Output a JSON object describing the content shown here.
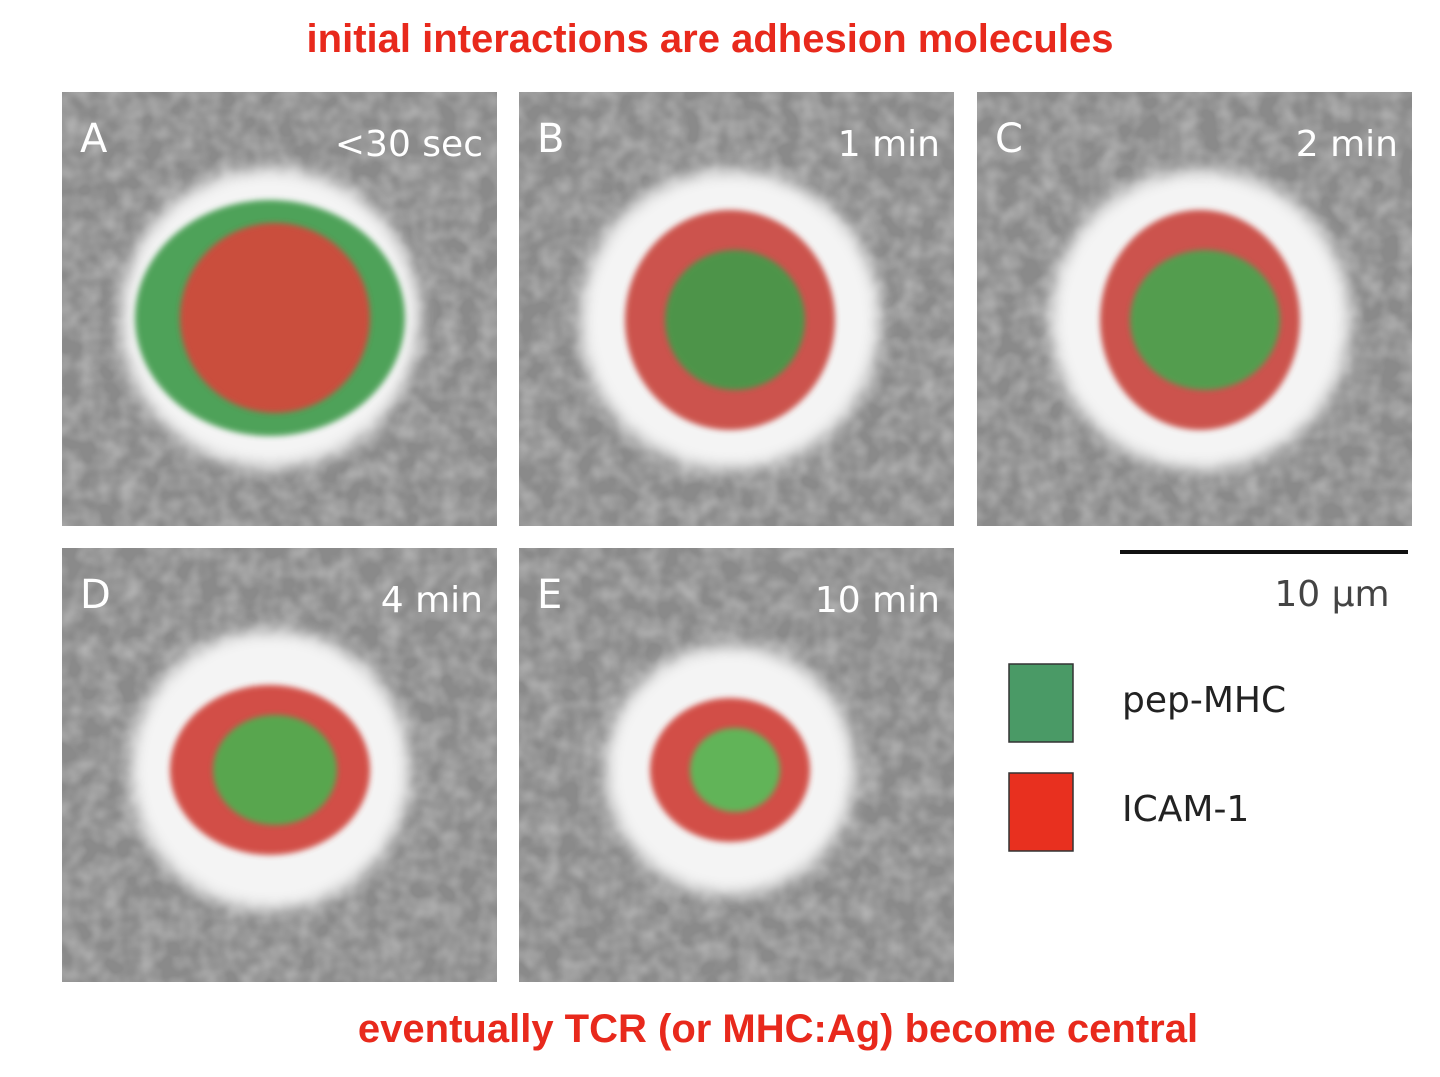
{
  "header": {
    "title": "initial interactions are adhesion molecules"
  },
  "panels": [
    {
      "letter": "A",
      "time": "<30 sec"
    },
    {
      "letter": "B",
      "time": "1 min"
    },
    {
      "letter": "C",
      "time": "2 min"
    },
    {
      "letter": "D",
      "time": "4 min"
    },
    {
      "letter": "E",
      "time": "10 min"
    }
  ],
  "scale_bar": {
    "label": "10 μm"
  },
  "legend": [
    {
      "label": "pep-MHC",
      "color": "#4a9a66"
    },
    {
      "label": "ICAM-1",
      "color": "#e8301f"
    }
  ],
  "footer": {
    "caption": "eventually TCR (or MHC:Ag) become central"
  }
}
